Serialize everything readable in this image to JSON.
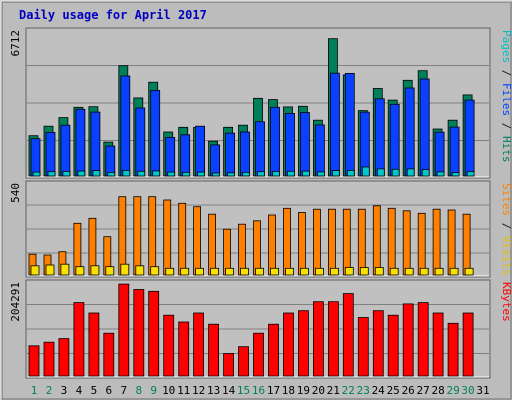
{
  "chart_data": {
    "type": "bar",
    "title": "Daily usage for April 2017",
    "x": [
      "1",
      "2",
      "3",
      "4",
      "5",
      "6",
      "7",
      "8",
      "9",
      "10",
      "11",
      "12",
      "13",
      "14",
      "15",
      "16",
      "17",
      "18",
      "19",
      "20",
      "21",
      "22",
      "23",
      "24",
      "25",
      "26",
      "27",
      "28",
      "29",
      "30",
      "31"
    ],
    "weekend_days": [
      "1",
      "2",
      "8",
      "9",
      "15",
      "16",
      "22",
      "23",
      "29",
      "30"
    ],
    "panels": [
      {
        "axis_max_label": "6712",
        "ymax": 6712,
        "right_label_parts": [
          {
            "text": "Pages",
            "color": "#00c0c0"
          },
          {
            "text": " / ",
            "color": "#202020"
          },
          {
            "text": "Files",
            "color": "#0040ff"
          },
          {
            "text": " / ",
            "color": "#202020"
          },
          {
            "text": "Hits",
            "color": "#008060"
          }
        ],
        "series": [
          {
            "name": "Hits",
            "color": "#00805a",
            "values": [
              1880,
              2320,
              2720,
              3200,
              3230,
              1580,
              5140,
              3640,
              4370,
              2050,
              2270,
              2260,
              1620,
              2270,
              2370,
              3620,
              3560,
              3220,
              3250,
              2600,
              6400,
              4710,
              3050,
              4080,
              3540,
              4460,
              4910,
              2190,
              2600,
              3780,
              0
            ]
          },
          {
            "name": "Files",
            "color": "#0a40ff",
            "values": [
              1740,
              2030,
              2370,
              3110,
              2980,
              1400,
              4660,
              3170,
              3990,
              1800,
              1920,
              2320,
              1450,
              2000,
              2050,
              2530,
              3200,
              2920,
              2960,
              2380,
              4790,
              4780,
              2980,
              3600,
              3340,
              4100,
              4520,
              2040,
              2280,
              3540,
              0
            ]
          },
          {
            "name": "Pages",
            "color": "#00c8c8",
            "values": [
              180,
              200,
              210,
              230,
              250,
              170,
              260,
              220,
              240,
              180,
              170,
              180,
              140,
              150,
              170,
              200,
              210,
              220,
              230,
              190,
              250,
              260,
              420,
              330,
              310,
              330,
              300,
              190,
              160,
              200,
              0
            ]
          }
        ]
      },
      {
        "axis_max_label": "540",
        "ymax": 540,
        "right_label_parts": [
          {
            "text": "Sites",
            "color": "#ff8000"
          },
          {
            "text": " / ",
            "color": "#202020"
          },
          {
            "text": "Visits",
            "color": "#e0c000"
          }
        ],
        "series": [
          {
            "name": "Visits",
            "color": "#f8e000",
            "values": [
              55,
              60,
              65,
              50,
              55,
              50,
              65,
              55,
              50,
              40,
              40,
              40,
              40,
              40,
              40,
              40,
              40,
              40,
              40,
              40,
              40,
              45,
              45,
              45,
              40,
              40,
              40,
              40,
              40,
              40,
              0
            ]
          },
          {
            "name": "Sites",
            "color": "#ff8000",
            "values": [
              125,
              120,
              140,
              310,
              340,
              230,
              470,
              470,
              470,
              450,
              430,
              410,
              365,
              275,
              305,
              325,
              360,
              400,
              375,
              395,
              395,
              395,
              395,
              415,
              400,
              385,
              370,
              395,
              390,
              365,
              0
            ]
          }
        ]
      },
      {
        "axis_max_label": "204291",
        "ymax": 204291,
        "right_label_parts": [
          {
            "text": "KBytes",
            "color": "#ff0000"
          }
        ],
        "series": [
          {
            "name": "KBytes",
            "color": "#ff0000",
            "values": [
              67000,
              75000,
              83000,
              163000,
              140000,
              95000,
              204000,
              192000,
              188000,
              135000,
              120000,
              140000,
              115000,
              50000,
              65000,
              95000,
              115000,
              140000,
              145000,
              165000,
              165000,
              183000,
              130000,
              145000,
              135000,
              160000,
              163000,
              140000,
              117000,
              140000,
              0
            ]
          }
        ]
      }
    ],
    "grid": true,
    "legend": "right"
  },
  "colors": {
    "background": "#bcbcbc",
    "plot_background": "#c0c0c0",
    "title": "#0000c0",
    "weekend_label": "#00805a",
    "weekday_label": "#000000"
  }
}
